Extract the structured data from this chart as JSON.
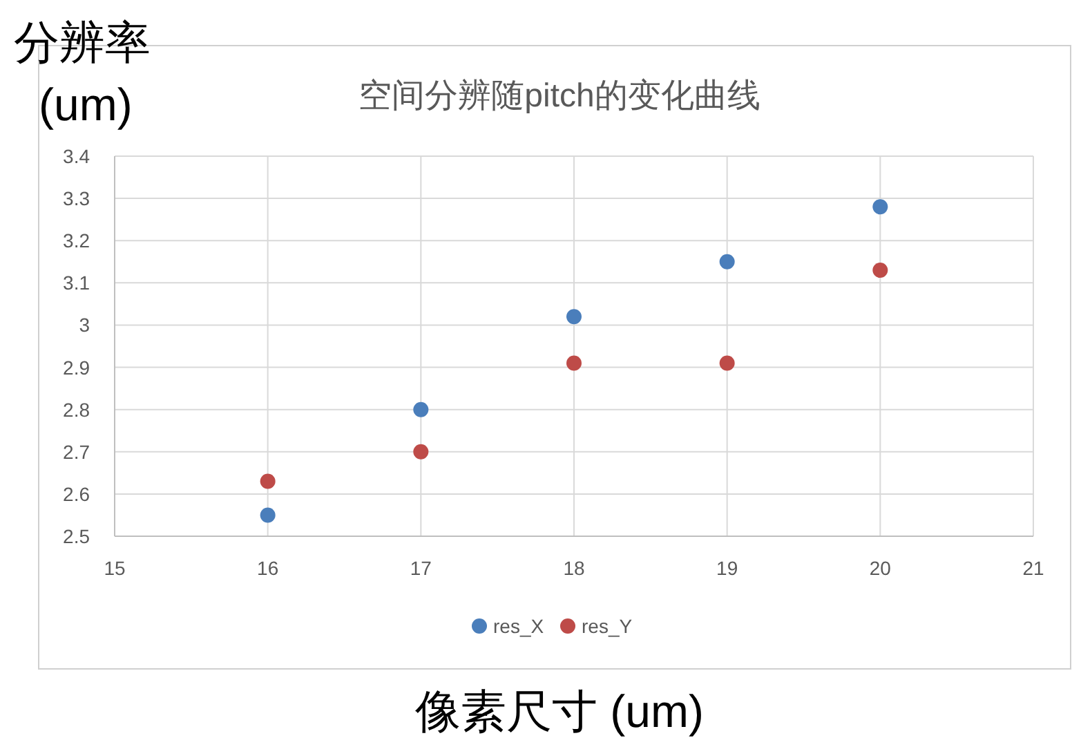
{
  "chart_data": {
    "type": "scatter",
    "title": "空间分辨随pitch的变化曲线",
    "xlabel": "像素尺寸 (um)",
    "ylabel": "分辨率 (um)",
    "x": [
      16,
      17,
      18,
      19,
      20
    ],
    "series": [
      {
        "name": "res_X",
        "color": "#4a7ebb",
        "values": [
          2.55,
          2.8,
          3.02,
          3.15,
          3.28
        ]
      },
      {
        "name": "res_Y",
        "color": "#be4b48",
        "values": [
          2.63,
          2.7,
          2.91,
          2.91,
          3.13
        ]
      }
    ],
    "xlim": [
      15,
      21
    ],
    "ylim": [
      2.5,
      3.4
    ],
    "xticks": [
      15,
      16,
      17,
      18,
      19,
      20,
      21
    ],
    "yticks": [
      2.5,
      2.6,
      2.7,
      2.8,
      2.9,
      3,
      3.1,
      3.2,
      3.3,
      3.4
    ],
    "grid": true,
    "legend": "bottom",
    "marker": "circle"
  }
}
